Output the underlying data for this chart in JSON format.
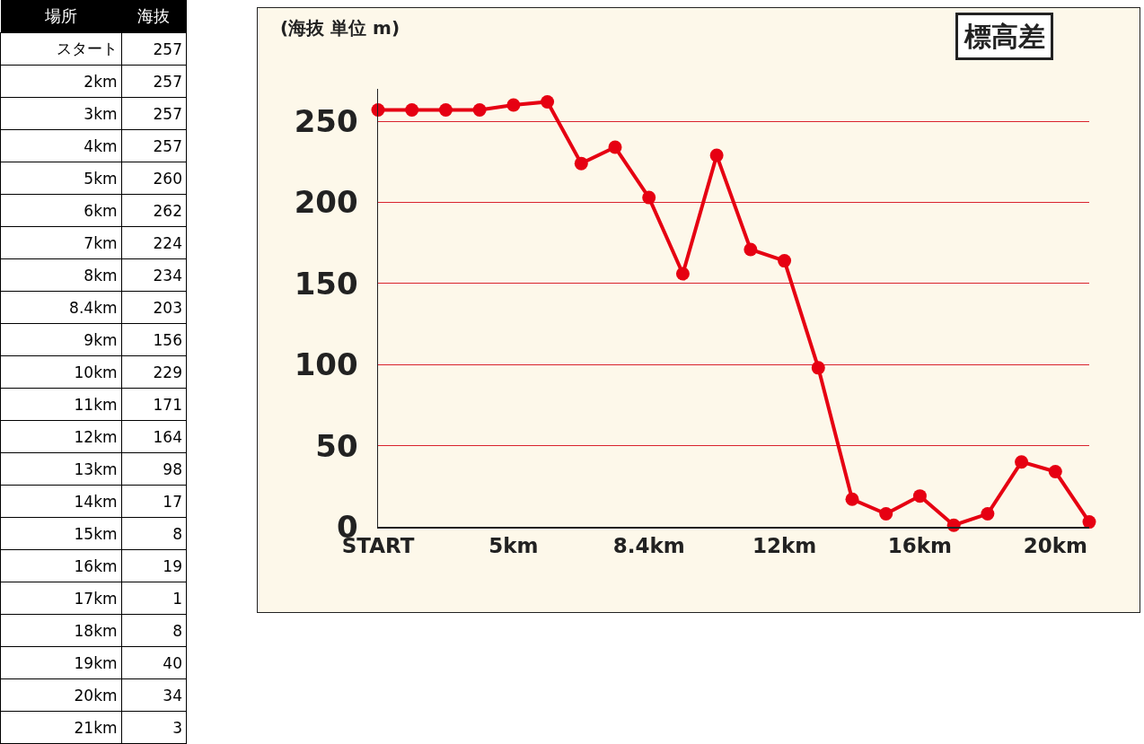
{
  "chart_data": [
    {
      "type": "other",
      "xlabel": "場所",
      "ylabel": "海抜",
      "data_labels": true,
      "categories": [
        "スタート",
        "2km",
        "3km",
        "4km",
        "5km",
        "6km",
        "7km",
        "8km",
        "8.4km",
        "9km",
        "10km",
        "11km",
        "12km",
        "13km",
        "14km",
        "15km",
        "16km",
        "17km",
        "18km",
        "19km",
        "20km",
        "21km"
      ],
      "values": [
        257,
        257,
        257,
        257,
        260,
        262,
        224,
        234,
        203,
        156,
        229,
        171,
        164,
        98,
        17,
        8,
        19,
        1,
        8,
        40,
        34,
        3
      ]
    },
    {
      "type": "line",
      "title": "標高差",
      "ylabel": "(海抜 単位 m)",
      "color": "#e60012",
      "marker": "circle",
      "line_style": "solid",
      "grid": "y",
      "categories": [
        "START",
        null,
        null,
        null,
        "5km",
        null,
        null,
        null,
        "8.4km",
        null,
        null,
        null,
        "12km",
        null,
        null,
        null,
        "16km",
        null,
        null,
        null,
        "20km",
        null
      ],
      "values": [
        257,
        257,
        257,
        257,
        260,
        262,
        224,
        234,
        203,
        156,
        229,
        171,
        164,
        98,
        17,
        8,
        19,
        1,
        8,
        40,
        34,
        3
      ],
      "ylim": [
        0,
        270
      ],
      "yticks": [
        0,
        50,
        100,
        150,
        200,
        250
      ]
    }
  ]
}
